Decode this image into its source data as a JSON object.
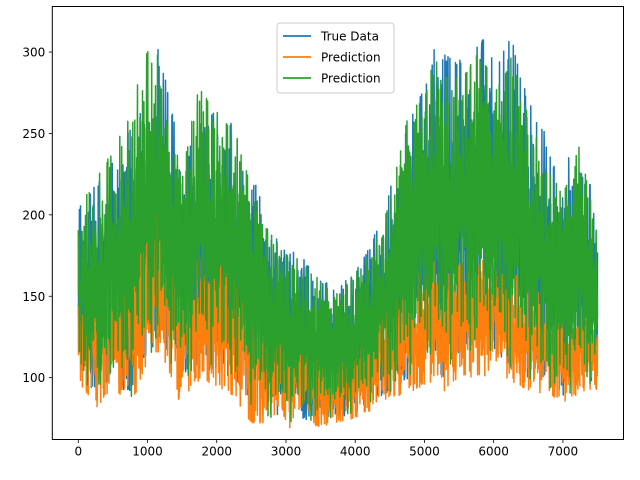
{
  "chart_data": {
    "type": "line",
    "title": "",
    "xlabel": "",
    "ylabel": "",
    "xlim": [
      -375,
      7875
    ],
    "ylim": [
      62,
      328
    ],
    "xticks": [
      0,
      1000,
      2000,
      3000,
      4000,
      5000,
      6000,
      7000
    ],
    "yticks": [
      100,
      150,
      200,
      250,
      300
    ],
    "xtick_labels": [
      "0",
      "1000",
      "2000",
      "3000",
      "4000",
      "5000",
      "6000",
      "7000"
    ],
    "ytick_labels": [
      "100",
      "150",
      "200",
      "250",
      "300"
    ],
    "grid": false,
    "legend": {
      "position": "top-center"
    },
    "series": [
      {
        "name": "True Data",
        "color": "#1f77b4",
        "x": [
          0,
          250,
          500,
          750,
          1000,
          1150,
          1250,
          1500,
          1750,
          2000,
          2250,
          2500,
          2750,
          3000,
          3250,
          3500,
          3750,
          4000,
          4250,
          4500,
          4750,
          5000,
          5150,
          5250,
          5500,
          5750,
          5900,
          6000,
          6250,
          6500,
          6750,
          7000,
          7250,
          7500
        ],
        "upper": [
          205,
          220,
          235,
          255,
          285,
          303,
          285,
          235,
          250,
          268,
          255,
          225,
          200,
          180,
          175,
          160,
          155,
          165,
          185,
          215,
          255,
          280,
          310,
          300,
          295,
          305,
          315,
          290,
          310,
          270,
          250,
          225,
          263,
          187
        ],
        "lower": [
          95,
          92,
          100,
          88,
          115,
          122,
          118,
          100,
          108,
          102,
          100,
          84,
          78,
          74,
          74,
          75,
          75,
          78,
          85,
          92,
          98,
          110,
          115,
          97,
          115,
          118,
          115,
          118,
          105,
          100,
          98,
          88,
          95,
          95
        ]
      },
      {
        "name": "Prediction",
        "color": "#ff7f0e",
        "x": [
          0,
          250,
          500,
          750,
          1000,
          1150,
          1250,
          1500,
          1750,
          2000,
          2250,
          2500,
          2750,
          3000,
          3250,
          3500,
          3750,
          4000,
          4250,
          4500,
          4750,
          5000,
          5150,
          5250,
          5500,
          5750,
          5900,
          6000,
          6250,
          6500,
          6750,
          7000,
          7250,
          7500
        ],
        "upper": [
          160,
          170,
          180,
          190,
          205,
          210,
          200,
          175,
          180,
          185,
          175,
          160,
          145,
          135,
          130,
          125,
          122,
          128,
          140,
          150,
          160,
          170,
          172,
          168,
          170,
          175,
          175,
          170,
          165,
          158,
          150,
          140,
          145,
          135
        ],
        "lower": [
          98,
          80,
          95,
          82,
          108,
          115,
          110,
          80,
          98,
          95,
          88,
          72,
          70,
          68,
          70,
          70,
          72,
          75,
          80,
          88,
          90,
          95,
          98,
          90,
          100,
          100,
          100,
          105,
          98,
          92,
          90,
          85,
          90,
          93
        ]
      },
      {
        "name": "Prediction",
        "color": "#2ca02c",
        "x": [
          0,
          250,
          500,
          750,
          1000,
          1150,
          1250,
          1500,
          1750,
          2000,
          2250,
          2500,
          2750,
          3000,
          3250,
          3500,
          3750,
          4000,
          4250,
          4500,
          4750,
          5000,
          5150,
          5250,
          5500,
          5750,
          5900,
          6000,
          6250,
          6500,
          6750,
          7000,
          7250,
          7500
        ],
        "upper": [
          205,
          222,
          240,
          265,
          305,
          300,
          265,
          228,
          282,
          265,
          255,
          220,
          190,
          178,
          172,
          160,
          152,
          165,
          180,
          210,
          262,
          275,
          298,
          290,
          285,
          300,
          295,
          275,
          298,
          265,
          230,
          215,
          245,
          187
        ],
        "lower": [
          100,
          90,
          105,
          85,
          110,
          120,
          115,
          95,
          110,
          105,
          100,
          82,
          75,
          72,
          72,
          74,
          75,
          78,
          85,
          90,
          98,
          110,
          115,
          98,
          115,
          115,
          115,
          115,
          105,
          98,
          95,
          85,
          95,
          95
        ]
      }
    ]
  }
}
